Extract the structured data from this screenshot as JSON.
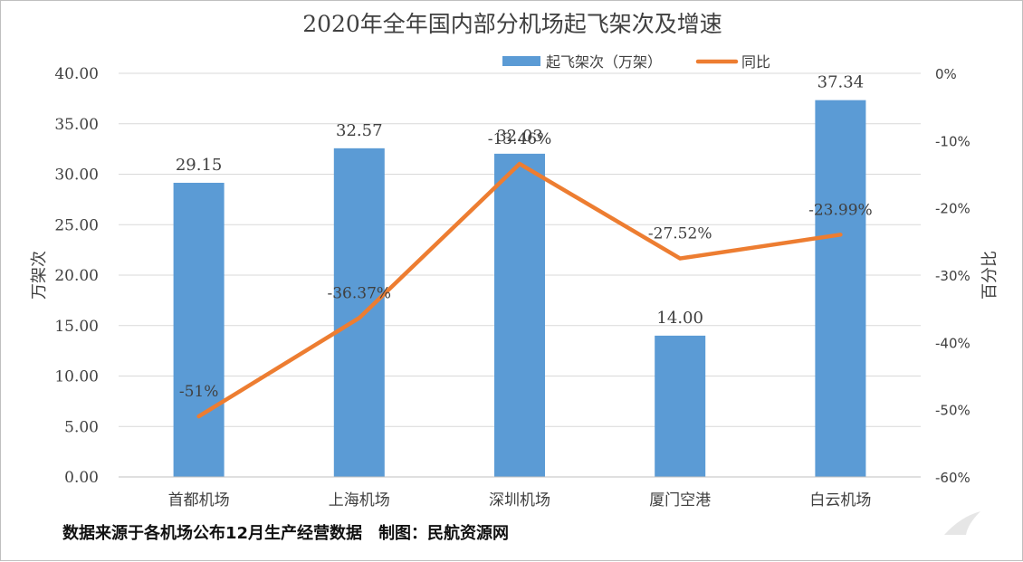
{
  "chart_data": {
    "type": "bar",
    "title": "2020年全年国内部分机场起飞架次及增速",
    "categories": [
      "首都机场",
      "上海机场",
      "深圳机场",
      "厦门空港",
      "白云机场"
    ],
    "series": [
      {
        "name": "起飞架次（万架）",
        "type": "bar",
        "axis": "left",
        "values": [
          29.15,
          32.57,
          32.03,
          14.0,
          37.34
        ],
        "labels": [
          "29.15",
          "32.57",
          "32.03",
          "14.00",
          "37.34"
        ],
        "color": "#5b9bd5"
      },
      {
        "name": "同比",
        "type": "line",
        "axis": "right",
        "values": [
          -51,
          -36.37,
          -13.46,
          -27.52,
          -23.99
        ],
        "labels": [
          "-51%",
          "-36.37%",
          "-13.46%",
          "-27.52%",
          "-23.99%"
        ],
        "color": "#ed7d31"
      }
    ],
    "ylabel": "万架次",
    "ylim": [
      0,
      40
    ],
    "yticks": [
      "0.00",
      "5.00",
      "10.00",
      "15.00",
      "20.00",
      "25.00",
      "30.00",
      "35.00",
      "40.00"
    ],
    "y2label": "百分比",
    "y2lim": [
      -60,
      0
    ],
    "y2ticks": [
      "-60%",
      "-50%",
      "-40%",
      "-30%",
      "-20%",
      "-10%",
      "0%"
    ],
    "grid": true,
    "legend": "top"
  },
  "footer": {
    "source": "数据来源于各机场公布12月生产经营数据",
    "credit": "制图：民航资源网"
  }
}
